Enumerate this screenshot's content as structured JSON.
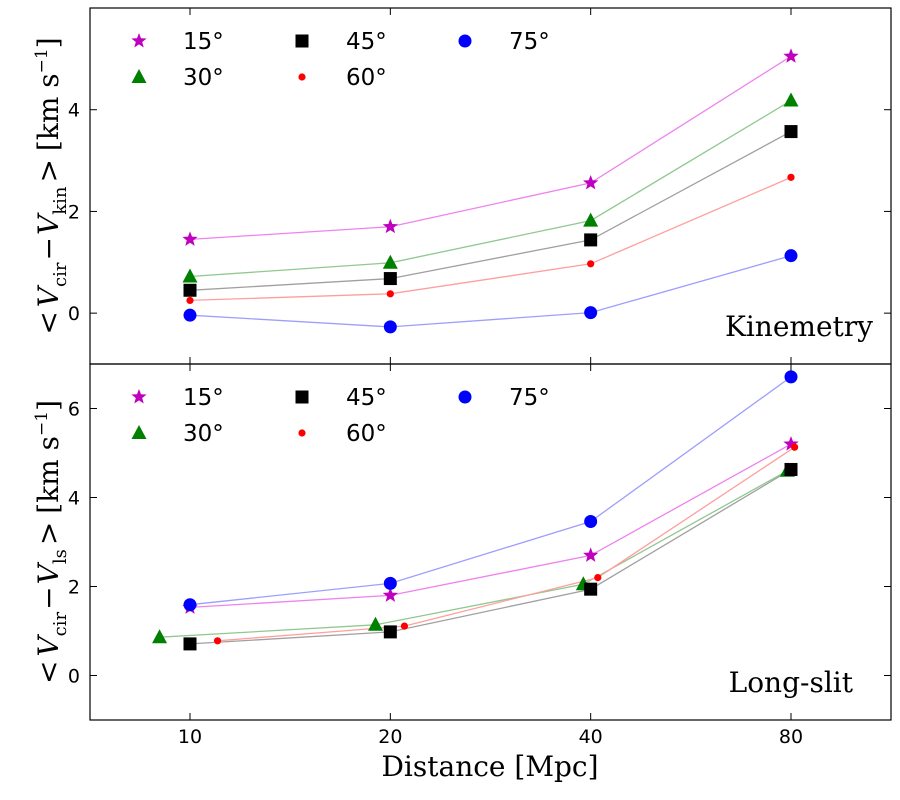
{
  "chart_data": [
    {
      "type": "line",
      "panel_label": "Kinemetry",
      "ylabel": "< V_cir − V_kin > [km s⁻¹]",
      "ylabel_parts": {
        "open": "<",
        "v1": "V",
        "s1": "cir",
        "minus": "−",
        "v2": "V",
        "s2": "kin",
        "close": ">",
        "units": "[km s",
        "exp": "−1",
        "units_close": "]"
      },
      "xlabel": "Distance [Mpc]",
      "xtick_labels": [
        "10",
        "20",
        "40",
        "80"
      ],
      "ylim": [
        -1,
        6
      ],
      "yticks": [
        0,
        2,
        4
      ],
      "legend_position": "top-left",
      "series": [
        {
          "name": "15°",
          "color": "#bf00bf",
          "line_color": "#ee82ee",
          "marker": "star",
          "x": [
            10,
            20,
            40,
            80
          ],
          "y": [
            1.45,
            1.7,
            2.56,
            5.05
          ]
        },
        {
          "name": "30°",
          "color": "#008000",
          "line_color": "#90c890",
          "marker": "triangle",
          "x": [
            10,
            20,
            40,
            80
          ],
          "y": [
            0.72,
            0.99,
            1.82,
            4.18
          ]
        },
        {
          "name": "45°",
          "color": "#000000",
          "line_color": "#a0a0a0",
          "marker": "square",
          "x": [
            10,
            20,
            40,
            80
          ],
          "y": [
            0.45,
            0.68,
            1.44,
            3.57
          ]
        },
        {
          "name": "60°",
          "color": "#ff0000",
          "line_color": "#ff9e9e",
          "marker": "dot",
          "x": [
            10,
            20,
            40,
            80
          ],
          "y": [
            0.25,
            0.38,
            0.97,
            2.67
          ]
        },
        {
          "name": "75°",
          "color": "#0000ff",
          "line_color": "#9e9eff",
          "marker": "circle",
          "x": [
            10,
            20,
            40,
            80
          ],
          "y": [
            -0.04,
            -0.27,
            0.01,
            1.13
          ]
        }
      ]
    },
    {
      "type": "line",
      "panel_label": "Long-slit",
      "ylabel": "< V_cir − V_ls > [km s⁻¹]",
      "ylabel_parts": {
        "open": "<",
        "v1": "V",
        "s1": "cir",
        "minus": "−",
        "v2": "V",
        "s2": "ls",
        "close": ">",
        "units": "[km s",
        "exp": "−1",
        "units_close": "]"
      },
      "xlabel": "Distance [Mpc]",
      "xtick_labels": [
        "10",
        "20",
        "40",
        "80"
      ],
      "ylim": [
        -1,
        7
      ],
      "yticks": [
        0,
        2,
        4,
        6
      ],
      "legend_position": "top-left",
      "series": [
        {
          "name": "15°",
          "color": "#bf00bf",
          "line_color": "#ee82ee",
          "marker": "star",
          "x": [
            10,
            20,
            40,
            80
          ],
          "y": [
            1.53,
            1.8,
            2.7,
            5.2
          ]
        },
        {
          "name": "30°",
          "color": "#008000",
          "line_color": "#90c890",
          "marker": "triangle",
          "x": [
            9,
            19,
            39,
            79
          ],
          "y": [
            0.86,
            1.14,
            2.05,
            4.6
          ]
        },
        {
          "name": "45°",
          "color": "#000000",
          "line_color": "#a0a0a0",
          "marker": "square",
          "x": [
            10,
            20,
            40,
            80
          ],
          "y": [
            0.71,
            0.98,
            1.94,
            4.63
          ]
        },
        {
          "name": "60°",
          "color": "#ff0000",
          "line_color": "#ff9e9e",
          "marker": "dot",
          "x": [
            11,
            21,
            41,
            81
          ],
          "y": [
            0.78,
            1.11,
            2.2,
            5.13
          ]
        },
        {
          "name": "75°",
          "color": "#0000ff",
          "line_color": "#9e9eff",
          "marker": "circle",
          "x": [
            10,
            20,
            40,
            80
          ],
          "y": [
            1.59,
            2.07,
            3.46,
            6.71
          ]
        }
      ]
    }
  ]
}
